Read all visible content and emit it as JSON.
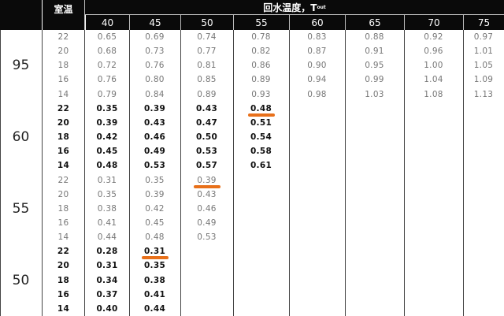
{
  "header": {
    "room_temp_label": "室温",
    "return_temp_label": "回水温度，T",
    "return_temp_sub": "out",
    "columns": [
      "40",
      "45",
      "50",
      "55",
      "60",
      "65",
      "70",
      "75"
    ]
  },
  "sections": [
    {
      "group": "95",
      "bold": false,
      "rows": [
        {
          "t": "22",
          "v": [
            "0.65",
            "0.69",
            "0.74",
            "0.78",
            "0.83",
            "0.88",
            "0.92",
            "0.97"
          ]
        },
        {
          "t": "20",
          "v": [
            "0.68",
            "0.73",
            "0.77",
            "0.82",
            "0.87",
            "0.91",
            "0.96",
            "1.01"
          ]
        },
        {
          "t": "18",
          "v": [
            "0.72",
            "0.76",
            "0.81",
            "0.86",
            "0.90",
            "0.95",
            "1.00",
            "1.05"
          ]
        },
        {
          "t": "16",
          "v": [
            "0.76",
            "0.80",
            "0.85",
            "0.89",
            "0.94",
            "0.99",
            "1.04",
            "1.09"
          ]
        },
        {
          "t": "14",
          "v": [
            "0.79",
            "0.84",
            "0.89",
            "0.93",
            "0.98",
            "1.03",
            "1.08",
            "1.13"
          ]
        }
      ]
    },
    {
      "group": "60",
      "bold": true,
      "rows": [
        {
          "t": "22",
          "v": [
            "0.35",
            "0.39",
            "0.43",
            "0.48"
          ]
        },
        {
          "t": "20",
          "v": [
            "0.39",
            "0.43",
            "0.47",
            "0.51"
          ]
        },
        {
          "t": "18",
          "v": [
            "0.42",
            "0.46",
            "0.50",
            "0.54"
          ]
        },
        {
          "t": "16",
          "v": [
            "0.45",
            "0.49",
            "0.53",
            "0.58"
          ]
        },
        {
          "t": "14",
          "v": [
            "0.48",
            "0.53",
            "0.57",
            "0.61"
          ]
        }
      ]
    },
    {
      "group": "55",
      "bold": false,
      "rows": [
        {
          "t": "22",
          "v": [
            "0.31",
            "0.35",
            "0.39"
          ]
        },
        {
          "t": "20",
          "v": [
            "0.35",
            "0.39",
            "0.43"
          ]
        },
        {
          "t": "18",
          "v": [
            "0.38",
            "0.42",
            "0.46"
          ]
        },
        {
          "t": "16",
          "v": [
            "0.41",
            "0.45",
            "0.49"
          ]
        },
        {
          "t": "14",
          "v": [
            "0.44",
            "0.48",
            "0.53"
          ]
        }
      ]
    },
    {
      "group": "50",
      "bold": true,
      "rows": [
        {
          "t": "22",
          "v": [
            "0.28",
            "0.31"
          ]
        },
        {
          "t": "20",
          "v": [
            "0.31",
            "0.35"
          ]
        },
        {
          "t": "18",
          "v": [
            "0.34",
            "0.38"
          ]
        },
        {
          "t": "16",
          "v": [
            "0.37",
            "0.41"
          ]
        },
        {
          "t": "14",
          "v": [
            "0.40",
            "0.44"
          ]
        }
      ]
    }
  ],
  "highlights": [
    {
      "section": 1,
      "row": 0,
      "col": 3
    },
    {
      "section": 2,
      "row": 0,
      "col": 2
    },
    {
      "section": 3,
      "row": 0,
      "col": 1
    }
  ],
  "highlight_color": "#e8701a"
}
